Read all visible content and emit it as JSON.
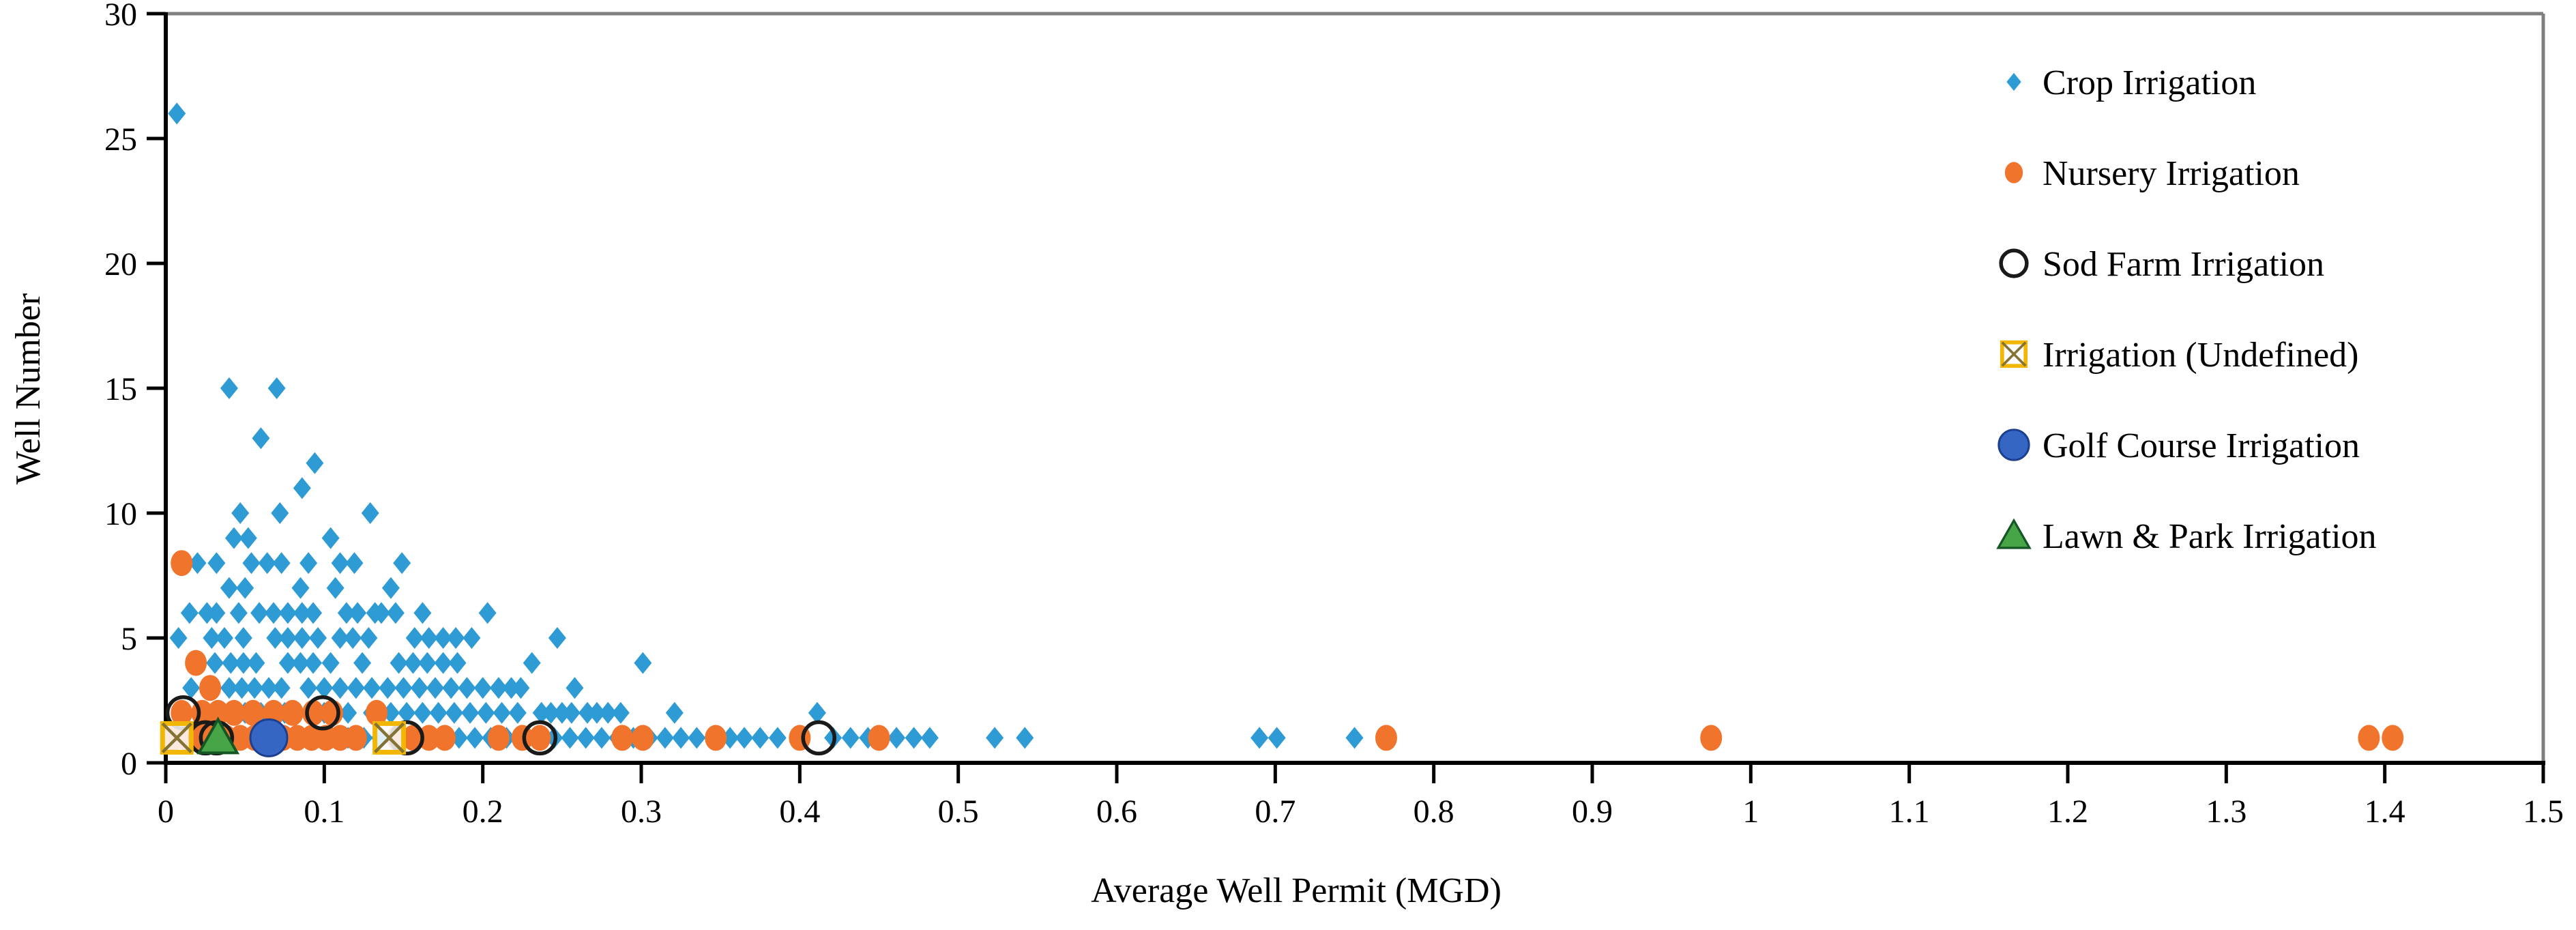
{
  "chart_data": {
    "type": "scatter",
    "title": "",
    "xlabel": "Average Well Permit (MGD)",
    "ylabel": "Well Number",
    "xlim": [
      0,
      1.5
    ],
    "ylim": [
      0,
      30
    ],
    "grid": false,
    "legend_position": "inside-top-right",
    "x_ticks": {
      "values": [
        0,
        0.1,
        0.2,
        0.3,
        0.4,
        0.5,
        0.6,
        0.7,
        0.8,
        0.9,
        1,
        1.1,
        1.2,
        1.3,
        1.4,
        1.5
      ],
      "labels": [
        "0",
        "0.1",
        "0.2",
        "0.3",
        "0.4",
        "0.5",
        "0.6",
        "0.7",
        "0.8",
        "0.9",
        "1",
        "1.1",
        "1.2",
        "1.3",
        "1.4",
        "1.5"
      ]
    },
    "y_ticks": {
      "values": [
        0,
        5,
        10,
        15,
        20,
        25,
        30
      ],
      "labels": [
        "0",
        "5",
        "10",
        "15",
        "20",
        "25",
        "30"
      ]
    },
    "colors": {
      "crop": "#2E9BD5",
      "nursery": "#F0742C",
      "sod": "#1a1a1a",
      "undefined_square": "#F2B705",
      "undefined_cross": "#857336",
      "golf": "#3566C4",
      "golf_edge": "#1d3f8f",
      "lawn": "#47A447",
      "lawn_edge": "#155724",
      "axis": "#000000",
      "frame": "#7f7f7f"
    },
    "series": [
      {
        "name": "Crop Irrigation",
        "slug": "crop-irrigation",
        "marker": "diamond",
        "color": "#2E9BD5",
        "points": [
          [
            0.007,
            26
          ],
          [
            0.04,
            15
          ],
          [
            0.07,
            15
          ],
          [
            0.06,
            13
          ],
          [
            0.094,
            12
          ],
          [
            0.086,
            11
          ],
          [
            0.047,
            10
          ],
          [
            0.072,
            10
          ],
          [
            0.129,
            10
          ],
          [
            0.043,
            9
          ],
          [
            0.052,
            9
          ],
          [
            0.104,
            9
          ],
          [
            0.02,
            8
          ],
          [
            0.032,
            8
          ],
          [
            0.054,
            8
          ],
          [
            0.064,
            8
          ],
          [
            0.073,
            8
          ],
          [
            0.09,
            8
          ],
          [
            0.11,
            8
          ],
          [
            0.119,
            8
          ],
          [
            0.149,
            8
          ],
          [
            0.04,
            7
          ],
          [
            0.05,
            7
          ],
          [
            0.085,
            7
          ],
          [
            0.107,
            7
          ],
          [
            0.142,
            7
          ],
          [
            0.015,
            6
          ],
          [
            0.026,
            6
          ],
          [
            0.032,
            6
          ],
          [
            0.046,
            6
          ],
          [
            0.059,
            6
          ],
          [
            0.068,
            6
          ],
          [
            0.077,
            6
          ],
          [
            0.086,
            6
          ],
          [
            0.093,
            6
          ],
          [
            0.114,
            6
          ],
          [
            0.121,
            6
          ],
          [
            0.132,
            6
          ],
          [
            0.136,
            6
          ],
          [
            0.145,
            6
          ],
          [
            0.162,
            6
          ],
          [
            0.203,
            6
          ],
          [
            0.008,
            5
          ],
          [
            0.029,
            5
          ],
          [
            0.037,
            5
          ],
          [
            0.049,
            5
          ],
          [
            0.069,
            5
          ],
          [
            0.077,
            5
          ],
          [
            0.086,
            5
          ],
          [
            0.096,
            5
          ],
          [
            0.11,
            5
          ],
          [
            0.118,
            5
          ],
          [
            0.128,
            5
          ],
          [
            0.157,
            5
          ],
          [
            0.166,
            5
          ],
          [
            0.175,
            5
          ],
          [
            0.183,
            5
          ],
          [
            0.193,
            5
          ],
          [
            0.247,
            5
          ],
          [
            0.031,
            4
          ],
          [
            0.041,
            4
          ],
          [
            0.049,
            4
          ],
          [
            0.057,
            4
          ],
          [
            0.077,
            4
          ],
          [
            0.085,
            4
          ],
          [
            0.093,
            4
          ],
          [
            0.104,
            4
          ],
          [
            0.124,
            4
          ],
          [
            0.147,
            4
          ],
          [
            0.156,
            4
          ],
          [
            0.165,
            4
          ],
          [
            0.175,
            4
          ],
          [
            0.184,
            4
          ],
          [
            0.231,
            4
          ],
          [
            0.301,
            4
          ],
          [
            0.016,
            3
          ],
          [
            0.04,
            3
          ],
          [
            0.048,
            3
          ],
          [
            0.056,
            3
          ],
          [
            0.065,
            3
          ],
          [
            0.073,
            3
          ],
          [
            0.09,
            3
          ],
          [
            0.1,
            3
          ],
          [
            0.11,
            3
          ],
          [
            0.12,
            3
          ],
          [
            0.13,
            3
          ],
          [
            0.14,
            3
          ],
          [
            0.15,
            3
          ],
          [
            0.16,
            3
          ],
          [
            0.17,
            3
          ],
          [
            0.18,
            3
          ],
          [
            0.19,
            3
          ],
          [
            0.2,
            3
          ],
          [
            0.21,
            3
          ],
          [
            0.218,
            3
          ],
          [
            0.224,
            3
          ],
          [
            0.258,
            3
          ],
          [
            0.05,
            2
          ],
          [
            0.06,
            2
          ],
          [
            0.075,
            2
          ],
          [
            0.09,
            2
          ],
          [
            0.1,
            2
          ],
          [
            0.115,
            2
          ],
          [
            0.13,
            2
          ],
          [
            0.142,
            2
          ],
          [
            0.152,
            2
          ],
          [
            0.162,
            2
          ],
          [
            0.172,
            2
          ],
          [
            0.182,
            2
          ],
          [
            0.192,
            2
          ],
          [
            0.202,
            2
          ],
          [
            0.212,
            2
          ],
          [
            0.222,
            2
          ],
          [
            0.237,
            2
          ],
          [
            0.243,
            2
          ],
          [
            0.25,
            2
          ],
          [
            0.256,
            2
          ],
          [
            0.266,
            2
          ],
          [
            0.272,
            2
          ],
          [
            0.279,
            2
          ],
          [
            0.287,
            2
          ],
          [
            0.321,
            2
          ],
          [
            0.411,
            2
          ],
          [
            0.015,
            1
          ],
          [
            0.025,
            1
          ],
          [
            0.035,
            1
          ],
          [
            0.045,
            1
          ],
          [
            0.055,
            1
          ],
          [
            0.065,
            1
          ],
          [
            0.075,
            1
          ],
          [
            0.085,
            1
          ],
          [
            0.095,
            1
          ],
          [
            0.105,
            1
          ],
          [
            0.115,
            1
          ],
          [
            0.125,
            1
          ],
          [
            0.135,
            1
          ],
          [
            0.145,
            1
          ],
          [
            0.155,
            1
          ],
          [
            0.165,
            1
          ],
          [
            0.175,
            1
          ],
          [
            0.185,
            1
          ],
          [
            0.195,
            1
          ],
          [
            0.205,
            1
          ],
          [
            0.215,
            1
          ],
          [
            0.225,
            1
          ],
          [
            0.235,
            1
          ],
          [
            0.245,
            1
          ],
          [
            0.255,
            1
          ],
          [
            0.265,
            1
          ],
          [
            0.275,
            1
          ],
          [
            0.285,
            1
          ],
          [
            0.295,
            1
          ],
          [
            0.305,
            1
          ],
          [
            0.315,
            1
          ],
          [
            0.325,
            1
          ],
          [
            0.335,
            1
          ],
          [
            0.345,
            1
          ],
          [
            0.356,
            1
          ],
          [
            0.365,
            1
          ],
          [
            0.375,
            1
          ],
          [
            0.386,
            1
          ],
          [
            0.4,
            1
          ],
          [
            0.421,
            1
          ],
          [
            0.432,
            1
          ],
          [
            0.443,
            1
          ],
          [
            0.461,
            1
          ],
          [
            0.472,
            1
          ],
          [
            0.482,
            1
          ],
          [
            0.523,
            1
          ],
          [
            0.542,
            1
          ],
          [
            0.69,
            1
          ],
          [
            0.701,
            1
          ],
          [
            0.75,
            1
          ]
        ]
      },
      {
        "name": "Nursery Irrigation",
        "slug": "nursery-irrigation",
        "marker": "ellipse",
        "color": "#F0742C",
        "points": [
          [
            0.01,
            8
          ],
          [
            0.019,
            4
          ],
          [
            0.028,
            3
          ],
          [
            0.01,
            2
          ],
          [
            0.023,
            2
          ],
          [
            0.033,
            2
          ],
          [
            0.043,
            2
          ],
          [
            0.055,
            2
          ],
          [
            0.068,
            2
          ],
          [
            0.08,
            2
          ],
          [
            0.093,
            2
          ],
          [
            0.105,
            2
          ],
          [
            0.133,
            2
          ],
          [
            0.005,
            1
          ],
          [
            0.013,
            1
          ],
          [
            0.022,
            1
          ],
          [
            0.03,
            1
          ],
          [
            0.038,
            1
          ],
          [
            0.047,
            1
          ],
          [
            0.056,
            1
          ],
          [
            0.065,
            1
          ],
          [
            0.074,
            1
          ],
          [
            0.083,
            1
          ],
          [
            0.092,
            1
          ],
          [
            0.101,
            1
          ],
          [
            0.11,
            1
          ],
          [
            0.12,
            1
          ],
          [
            0.146,
            1
          ],
          [
            0.156,
            1
          ],
          [
            0.166,
            1
          ],
          [
            0.176,
            1
          ],
          [
            0.21,
            1
          ],
          [
            0.225,
            1
          ],
          [
            0.236,
            1
          ],
          [
            0.288,
            1
          ],
          [
            0.301,
            1
          ],
          [
            0.347,
            1
          ],
          [
            0.4,
            1
          ],
          [
            0.45,
            1
          ],
          [
            0.77,
            1
          ],
          [
            0.975,
            1
          ],
          [
            1.39,
            1
          ],
          [
            1.405,
            1
          ]
        ]
      },
      {
        "name": "Sod Farm Irrigation",
        "slug": "sod-farm-irrigation",
        "marker": "open-circle",
        "color": "#1a1a1a",
        "points": [
          [
            0.011,
            2
          ],
          [
            0.025,
            1
          ],
          [
            0.032,
            1
          ],
          [
            0.099,
            2
          ],
          [
            0.152,
            1
          ],
          [
            0.236,
            1
          ],
          [
            0.412,
            1
          ]
        ]
      },
      {
        "name": "Irrigation (Undefined)",
        "slug": "irrigation-undefined",
        "marker": "crossed-square",
        "color": "#F2B705",
        "points": [
          [
            0.007,
            1
          ],
          [
            0.141,
            1
          ]
        ]
      },
      {
        "name": "Golf Course Irrigation",
        "slug": "golf-course-irrigation",
        "marker": "circle",
        "color": "#3566C4",
        "points": [
          [
            0.065,
            1
          ]
        ]
      },
      {
        "name": "Lawn & Park Irrigation",
        "slug": "lawn-park-irrigation",
        "marker": "triangle",
        "color": "#47A447",
        "points": [
          [
            0.033,
            1
          ]
        ]
      }
    ]
  }
}
